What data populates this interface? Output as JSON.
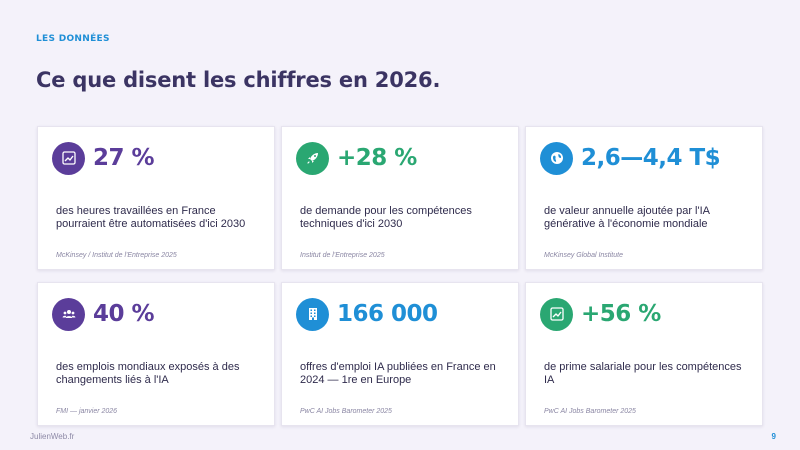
{
  "header": {
    "eyebrow": "LES DONNÉES",
    "title": "Ce que disent les chiffres en 2026."
  },
  "colors": {
    "purple": "#5b3d9a",
    "green": "#2aa772",
    "blue": "#1f8fd6"
  },
  "cards": [
    {
      "icon": "chart-trend-icon",
      "stat": "27 %",
      "description": "des heures travaillées en France pourraient être automatisées d'ici 2030",
      "source": "McKinsey / Institut de l'Entreprise 2025"
    },
    {
      "icon": "rocket-icon",
      "stat": "+28 %",
      "description": "de demande pour les compétences techniques d'ici 2030",
      "source": "Institut de l'Entreprise 2025"
    },
    {
      "icon": "globe-icon",
      "stat": "2,6—4,4 T$",
      "description": "de valeur annuelle ajoutée par l'IA générative à l'économie mondiale",
      "source": "McKinsey Global Institute"
    },
    {
      "icon": "people-group-icon",
      "stat": "40 %",
      "description": "des emplois mondiaux exposés à des changements liés à l'IA",
      "source": "FMI — janvier 2026"
    },
    {
      "icon": "building-icon",
      "stat": "166 000",
      "description": "offres d'emploi IA publiées en France en 2024 — 1re en Europe",
      "source": "PwC AI Jobs Barometer 2025"
    },
    {
      "icon": "chart-trend-icon",
      "stat": "+56 %",
      "description": "de prime salariale pour les compétences IA",
      "source": "PwC AI Jobs Barometer 2025"
    }
  ],
  "footer": {
    "brand": "JulienWeb.fr",
    "page_number": "9"
  }
}
